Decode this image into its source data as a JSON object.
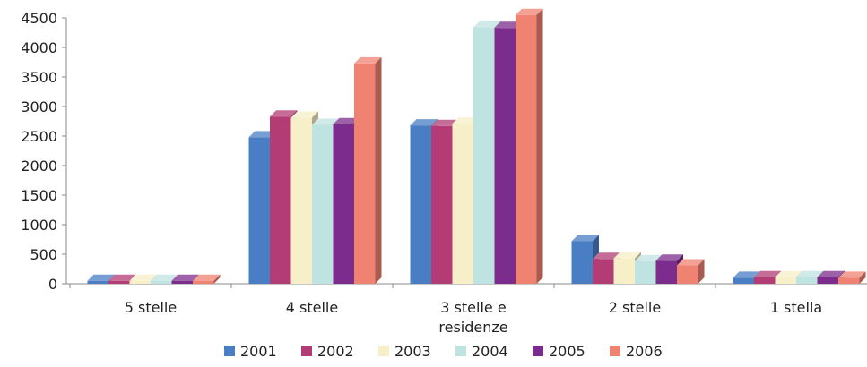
{
  "chart_data": {
    "type": "bar",
    "title": "",
    "xlabel": "",
    "ylabel": "",
    "categories": [
      [
        "5 stelle"
      ],
      [
        "4 stelle"
      ],
      [
        "3 stelle e",
        "residenze"
      ],
      [
        "2 stelle"
      ],
      [
        "1 stella"
      ]
    ],
    "ylim": [
      0,
      4500
    ],
    "yticks": [
      0,
      500,
      1000,
      1500,
      2000,
      2500,
      3000,
      3500,
      4000,
      4500
    ],
    "grid": false,
    "legend_position": "bottom",
    "series": [
      {
        "name": "2001",
        "color": "#4a7ec4",
        "values": [
          50,
          2480,
          2680,
          720,
          100
        ]
      },
      {
        "name": "2002",
        "color": "#b33c74",
        "values": [
          50,
          2830,
          2670,
          420,
          110
        ]
      },
      {
        "name": "2003",
        "color": "#f7efc8",
        "values": [
          50,
          2810,
          2710,
          430,
          110
        ]
      },
      {
        "name": "2004",
        "color": "#bfe3e0",
        "values": [
          50,
          2690,
          4340,
          380,
          110
        ]
      },
      {
        "name": "2005",
        "color": "#7b2c8c",
        "values": [
          50,
          2700,
          4330,
          390,
          110
        ]
      },
      {
        "name": "2006",
        "color": "#f08272",
        "values": [
          50,
          3730,
          4550,
          310,
          100
        ]
      }
    ]
  }
}
